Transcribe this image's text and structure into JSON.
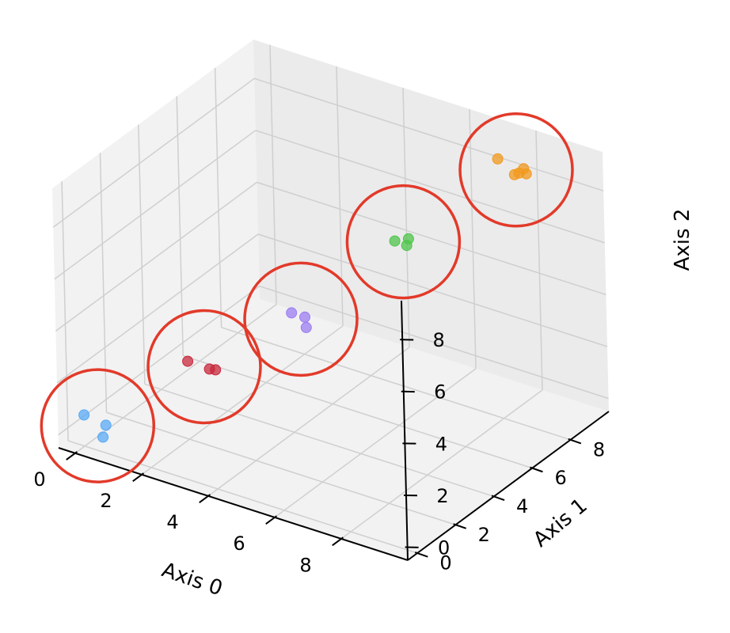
{
  "chart_data": {
    "type": "scatter",
    "projection": "3d",
    "grid": true,
    "xlabel": "Axis 0",
    "ylabel": "Axis 1",
    "zlabel": "Axis 2",
    "xlim": [
      -0.5,
      10
    ],
    "ylim": [
      -0.5,
      10
    ],
    "zlim": [
      -0.5,
      9.5
    ],
    "xticks": [
      0,
      2,
      4,
      6,
      8
    ],
    "yticks": [
      0,
      2,
      4,
      6,
      8
    ],
    "zticks": [
      0,
      2,
      4,
      6,
      8
    ],
    "series": [
      {
        "color": "#5aa9f5",
        "points": [
          [
            0.0,
            0.0,
            0.7
          ],
          [
            0.3,
            0.6,
            0.1
          ],
          [
            0.5,
            0.1,
            0.0
          ]
        ]
      },
      {
        "color": "#c8283c",
        "points": [
          [
            2.0,
            2.0,
            2.5
          ],
          [
            2.6,
            2.4,
            2.2
          ],
          [
            2.3,
            2.6,
            2.0
          ]
        ]
      },
      {
        "color": "#9b7cf2",
        "points": [
          [
            4.0,
            4.0,
            4.1
          ],
          [
            4.4,
            4.0,
            4.1
          ],
          [
            4.2,
            4.4,
            3.4
          ]
        ]
      },
      {
        "color": "#4fc44a",
        "points": [
          [
            6.0,
            6.0,
            6.6
          ],
          [
            6.3,
            6.2,
            6.7
          ],
          [
            6.3,
            6.1,
            6.5
          ]
        ]
      },
      {
        "color": "#f2991e",
        "points": [
          [
            8.0,
            8.0,
            9.5
          ],
          [
            8.4,
            8.4,
            8.9
          ],
          [
            8.6,
            8.3,
            9.2
          ],
          [
            8.2,
            8.5,
            8.7
          ],
          [
            8.5,
            8.6,
            8.8
          ]
        ]
      }
    ],
    "annotations": [
      {
        "type": "circle",
        "color": "#e23a2a"
      }
    ]
  }
}
